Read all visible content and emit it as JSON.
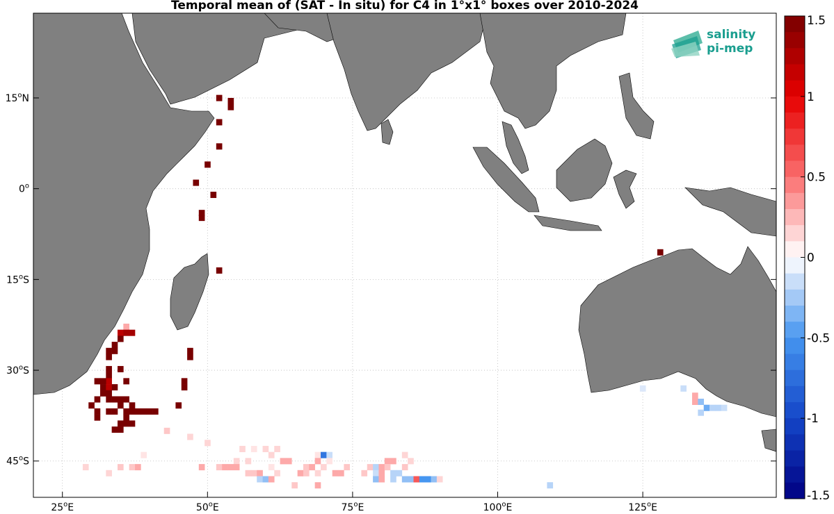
{
  "title": "Temporal mean of (SAT - In situ) for C4 in 1°x1° boxes over 2010-2024",
  "logo": {
    "line1": "salinity",
    "line2": "pi-mep",
    "color": "#1a9e8f"
  },
  "map": {
    "lon_range": [
      20,
      148
    ],
    "lat_range": [
      -51,
      29
    ],
    "land_color": "#808080",
    "ocean_color": "#ffffff",
    "x_ticks": [
      {
        "value": 25,
        "label": "25",
        "suffix": "E"
      },
      {
        "value": 50,
        "label": "50",
        "suffix": "E"
      },
      {
        "value": 75,
        "label": "75",
        "suffix": "E"
      },
      {
        "value": 100,
        "label": "100",
        "suffix": "E"
      },
      {
        "value": 125,
        "label": "125",
        "suffix": "E"
      }
    ],
    "y_ticks": [
      {
        "value": 15,
        "label": "15",
        "suffix": "N"
      },
      {
        "value": 0,
        "label": "0",
        "suffix": ""
      },
      {
        "value": -15,
        "label": "15",
        "suffix": "S"
      },
      {
        "value": -30,
        "label": "30",
        "suffix": "S"
      },
      {
        "value": -45,
        "label": "45",
        "suffix": "S"
      }
    ]
  },
  "colorbar": {
    "min": -1.5,
    "max": 1.5,
    "ticks": [
      "1.5",
      "1",
      "0.5",
      "0",
      "-0.5",
      "-1",
      "-1.5"
    ],
    "tick_values": [
      1.5,
      1,
      0.5,
      0,
      -0.5,
      -1,
      -1.5
    ]
  },
  "cells": [
    [
      52,
      15,
      1.6
    ],
    [
      54,
      14.5,
      1.6
    ],
    [
      54,
      13.5,
      1.6
    ],
    [
      52,
      11,
      1.6
    ],
    [
      52,
      7,
      1.6
    ],
    [
      50,
      4,
      1.6
    ],
    [
      48,
      1,
      1.6
    ],
    [
      51,
      -1,
      1.6
    ],
    [
      49,
      -4,
      1.6
    ],
    [
      49,
      -4.8,
      1.6
    ],
    [
      52,
      -13.5,
      1.6
    ],
    [
      128,
      -10.5,
      1.6
    ],
    [
      36,
      -22.8,
      0.3
    ],
    [
      35,
      -23.8,
      1.2
    ],
    [
      36,
      -23.8,
      1.3
    ],
    [
      37,
      -23.8,
      1.3
    ],
    [
      35,
      -24.8,
      1.6
    ],
    [
      34,
      -25.8,
      1.6
    ],
    [
      33,
      -26.8,
      1.6
    ],
    [
      34,
      -26.8,
      1.6
    ],
    [
      33,
      -27.8,
      1.6
    ],
    [
      47,
      -26.8,
      1.6
    ],
    [
      47,
      -27.8,
      1.6
    ],
    [
      33,
      -29.8,
      1.6
    ],
    [
      35,
      -29.8,
      1.6
    ],
    [
      33,
      -30.8,
      1.6
    ],
    [
      36,
      -31.8,
      1.6
    ],
    [
      31,
      -31.8,
      1.6
    ],
    [
      32,
      -32.8,
      1.6
    ],
    [
      33,
      -31.8,
      1.2
    ],
    [
      32,
      -31.8,
      1.6
    ],
    [
      33,
      -32.8,
      1.2
    ],
    [
      34,
      -32.8,
      1.6
    ],
    [
      46,
      -31.8,
      1.6
    ],
    [
      46,
      -32.8,
      1.6
    ],
    [
      33,
      -33.8,
      1.6
    ],
    [
      32,
      -33.8,
      1.6
    ],
    [
      34,
      -34.8,
      1.6
    ],
    [
      33,
      -34.8,
      1.6
    ],
    [
      31,
      -34.8,
      1.6
    ],
    [
      30,
      -35.8,
      1.6
    ],
    [
      35,
      -34.8,
      1.6
    ],
    [
      35,
      -35.8,
      1.6
    ],
    [
      36,
      -34.8,
      1.6
    ],
    [
      37,
      -35.8,
      1.6
    ],
    [
      45,
      -35.8,
      1.6
    ],
    [
      31,
      -36.8,
      1.6
    ],
    [
      33,
      -36.8,
      1.6
    ],
    [
      34,
      -36.8,
      1.6
    ],
    [
      36,
      -36.8,
      1.6
    ],
    [
      37,
      -36.8,
      1.6
    ],
    [
      38,
      -36.8,
      1.6
    ],
    [
      39,
      -36.8,
      1.6
    ],
    [
      40,
      -36.8,
      1.6
    ],
    [
      41,
      -36.8,
      1.6
    ],
    [
      31,
      -37.8,
      1.6
    ],
    [
      36,
      -37.8,
      1.6
    ],
    [
      35,
      -38.8,
      1.6
    ],
    [
      36,
      -38.8,
      1.6
    ],
    [
      37,
      -38.8,
      1.6
    ],
    [
      34,
      -39.8,
      1.6
    ],
    [
      35,
      -39.8,
      1.6
    ],
    [
      43,
      -40,
      0.2
    ],
    [
      47,
      -41,
      0.15
    ],
    [
      50,
      -42,
      0.15
    ],
    [
      56,
      -43,
      0.15
    ],
    [
      58,
      -43,
      0.1
    ],
    [
      60,
      -43,
      0.15
    ],
    [
      62,
      -43,
      0.15
    ],
    [
      39,
      -44,
      0.1
    ],
    [
      61,
      -44,
      0.15
    ],
    [
      69,
      -44,
      0.1
    ],
    [
      70,
      -44,
      -0.7
    ],
    [
      71,
      -44,
      -0.15
    ],
    [
      84,
      -44,
      0.15
    ],
    [
      55,
      -45,
      0.15
    ],
    [
      57,
      -45,
      0.15
    ],
    [
      63,
      -45,
      0.3
    ],
    [
      64,
      -45,
      0.3
    ],
    [
      69,
      -45,
      0.3
    ],
    [
      71,
      -45,
      0.1
    ],
    [
      81,
      -45,
      0.3
    ],
    [
      82,
      -45,
      0.3
    ],
    [
      85,
      -45,
      0.15
    ],
    [
      29,
      -46,
      0.15
    ],
    [
      35,
      -46,
      0.2
    ],
    [
      37,
      -46,
      0.2
    ],
    [
      38,
      -46,
      0.3
    ],
    [
      49,
      -46,
      0.3
    ],
    [
      52,
      -46,
      0.2
    ],
    [
      53,
      -46,
      0.3
    ],
    [
      54,
      -46,
      0.3
    ],
    [
      55,
      -46,
      0.3
    ],
    [
      61,
      -46,
      0.1
    ],
    [
      67,
      -46,
      0.2
    ],
    [
      68,
      -46,
      0.3
    ],
    [
      70,
      -46,
      0.15
    ],
    [
      74,
      -46,
      0.2
    ],
    [
      78,
      -46,
      0.2
    ],
    [
      79,
      -46,
      -0.2
    ],
    [
      80,
      -46,
      0.3
    ],
    [
      81,
      -46,
      0.2
    ],
    [
      84,
      -46,
      0.2
    ],
    [
      33,
      -47,
      0.15
    ],
    [
      57,
      -47,
      0.2
    ],
    [
      58,
      -47,
      0.2
    ],
    [
      59,
      -47,
      0.3
    ],
    [
      62,
      -47,
      0.15
    ],
    [
      66,
      -47,
      0.3
    ],
    [
      67,
      -47,
      0.2
    ],
    [
      69,
      -47,
      0.15
    ],
    [
      72,
      -47,
      0.3
    ],
    [
      73,
      -47,
      0.3
    ],
    [
      77,
      -47,
      0.2
    ],
    [
      79,
      -47,
      -0.15
    ],
    [
      80,
      -47,
      0.3
    ],
    [
      82,
      -47,
      -0.2
    ],
    [
      83,
      -47,
      -0.2
    ],
    [
      59,
      -48,
      -0.2
    ],
    [
      60,
      -48,
      -0.3
    ],
    [
      61,
      -48,
      0.3
    ],
    [
      79,
      -48,
      -0.3
    ],
    [
      80,
      -48,
      0.3
    ],
    [
      82,
      -48,
      -0.2
    ],
    [
      84,
      -48,
      -0.3
    ],
    [
      85,
      -48,
      -0.3
    ],
    [
      86,
      -48,
      0.6
    ],
    [
      87,
      -48,
      -0.5
    ],
    [
      88,
      -48,
      -0.5
    ],
    [
      89,
      -48,
      -0.3
    ],
    [
      90,
      -48,
      0.15
    ],
    [
      65,
      -49,
      0.2
    ],
    [
      69,
      -49,
      0.3
    ],
    [
      109,
      -49,
      -0.2
    ],
    [
      125,
      -33,
      -0.1
    ],
    [
      132,
      -33,
      -0.15
    ],
    [
      134,
      -34.2,
      0.3
    ],
    [
      134,
      -35.2,
      0.3
    ],
    [
      135,
      -35.2,
      -0.3
    ],
    [
      136,
      -36.2,
      -0.4
    ],
    [
      137,
      -36.2,
      -0.2
    ],
    [
      138,
      -36.2,
      -0.2
    ],
    [
      139,
      -36.2,
      -0.15
    ],
    [
      135,
      -37,
      -0.2
    ]
  ]
}
